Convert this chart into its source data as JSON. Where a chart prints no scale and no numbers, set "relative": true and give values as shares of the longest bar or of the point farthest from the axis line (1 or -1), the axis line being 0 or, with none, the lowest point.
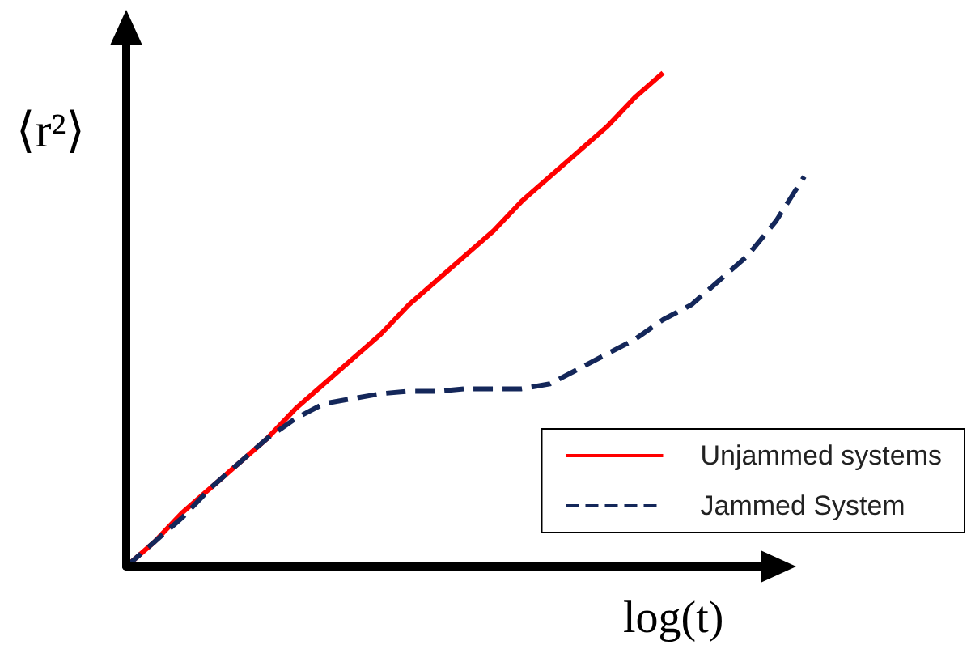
{
  "chart_data": {
    "type": "line",
    "relative": true,
    "xlabel": "log(t)",
    "ylabel": "⟨r²⟩",
    "categories": [
      null,
      null,
      null,
      null,
      null,
      null,
      null,
      null,
      null,
      null,
      null,
      null,
      null,
      null,
      null,
      null,
      null,
      null,
      null,
      null,
      null,
      null,
      null,
      null,
      null
    ],
    "series": [
      {
        "name": "Unjammed systems",
        "color": "#ff0000",
        "line_style": "solid",
        "values": [
          0,
          0.05,
          0.11,
          0.16,
          0.21,
          0.26,
          0.32,
          0.37,
          0.42,
          0.47,
          0.53,
          0.58,
          0.63,
          0.68,
          0.74,
          0.79,
          0.84,
          0.89,
          0.95,
          1,
          null,
          null,
          null,
          null,
          null
        ]
      },
      {
        "name": "Jammed System",
        "color": "#14275a",
        "line_style": "dashed",
        "values": [
          0,
          0.05,
          0.1,
          0.16,
          0.21,
          0.26,
          0.3,
          0.33,
          0.34,
          0.35,
          0.355,
          0.355,
          0.36,
          0.36,
          0.36,
          0.37,
          0.4,
          0.43,
          0.46,
          0.5,
          0.53,
          0.58,
          0.63,
          0.7,
          0.79
        ]
      }
    ],
    "grid": false,
    "legend": "bottom right",
    "marker": "none"
  }
}
